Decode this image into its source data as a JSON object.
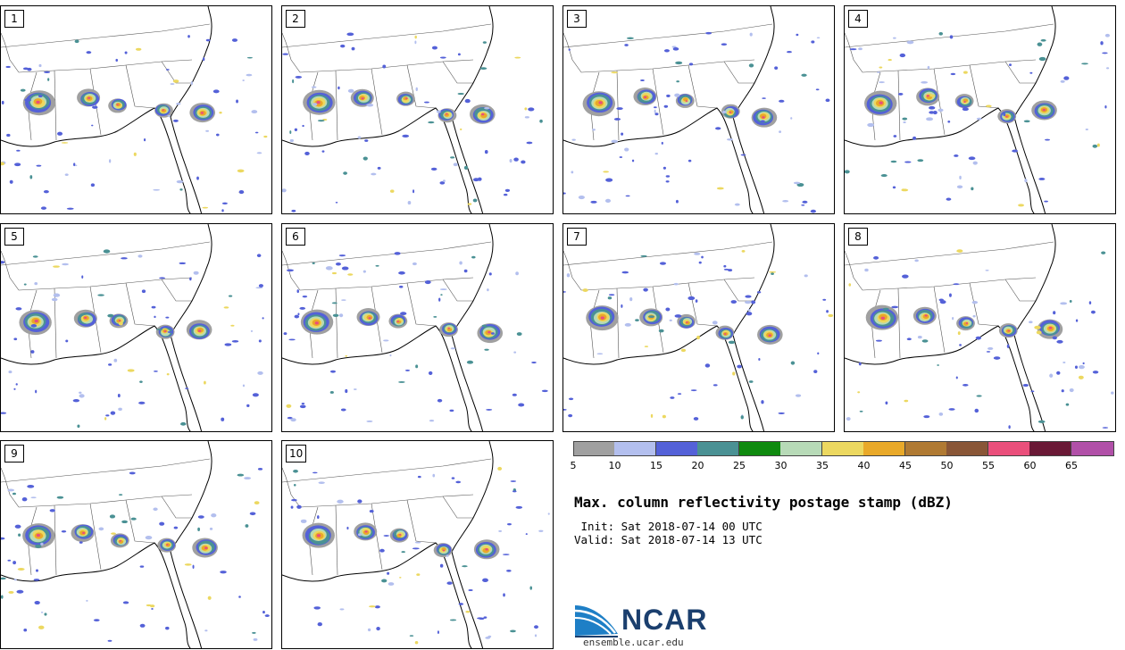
{
  "figure": {
    "title": "Max. column reflectivity postage stamp (dBZ)",
    "init": " Init: Sat 2018-07-14 00 UTC",
    "valid": "Valid: Sat 2018-07-14 13 UTC",
    "logo_text": "NCAR",
    "url": "ensemble.ucar.edu"
  },
  "members": [
    {
      "label": "1"
    },
    {
      "label": "2"
    },
    {
      "label": "3"
    },
    {
      "label": "4"
    },
    {
      "label": "5"
    },
    {
      "label": "6"
    },
    {
      "label": "7"
    },
    {
      "label": "8"
    },
    {
      "label": "9"
    },
    {
      "label": "10"
    }
  ],
  "colorbar": {
    "ticks": [
      "5",
      "10",
      "15",
      "20",
      "25",
      "30",
      "35",
      "40",
      "45",
      "50",
      "55",
      "60",
      "65"
    ],
    "colors": [
      "#a0a0a0",
      "#b3bfee",
      "#5461d8",
      "#4a9194",
      "#0f8a0f",
      "#b7dab7",
      "#ecd860",
      "#e9a929",
      "#b07a33",
      "#895637",
      "#ea4f7b",
      "#6a1936",
      "#b150a8"
    ]
  },
  "colors": {
    "coast": "#000000",
    "border": "#555555"
  }
}
